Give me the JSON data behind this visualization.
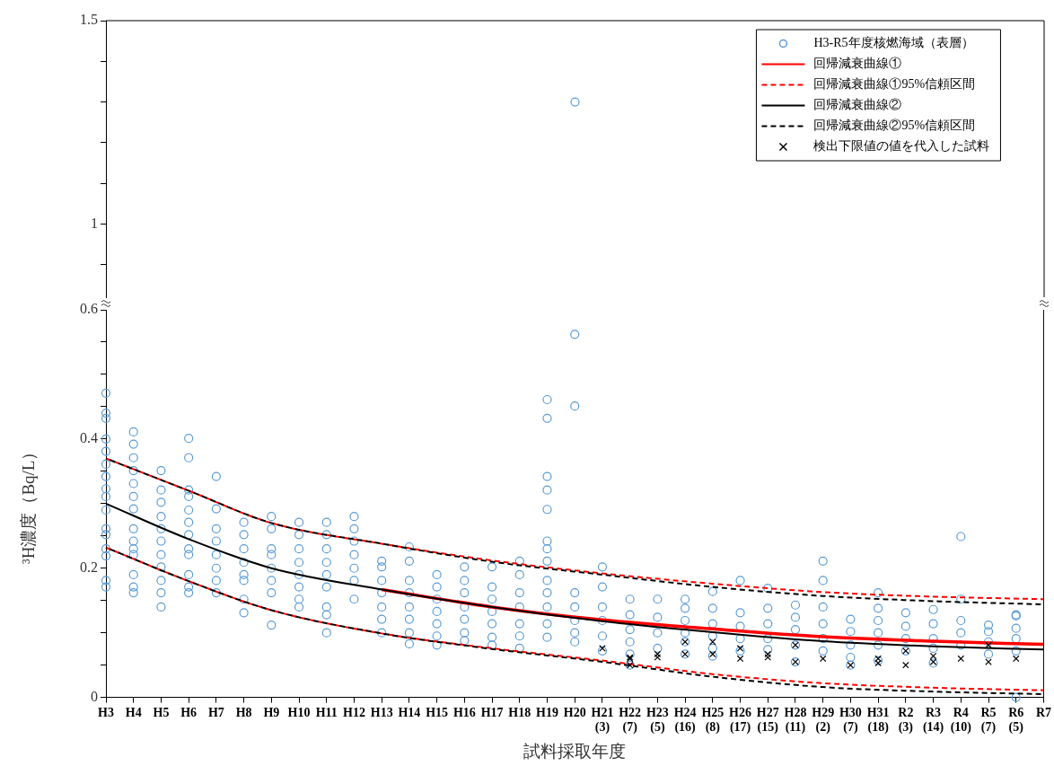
{
  "chart_data": [
    {
      "type": "scatter",
      "tick_labels": "y",
      "categories": [
        "H3",
        "H4",
        "H5",
        "H6",
        "H7",
        "H8",
        "H9",
        "H10",
        "H11",
        "H12",
        "H13",
        "H14",
        "H15",
        "H16",
        "H17",
        "H18",
        "H19",
        "H20",
        "H21\n(3)",
        "H22\n(7)",
        "H23\n(5)",
        "H24\n(16)",
        "H25\n(8)",
        "H26\n(17)",
        "H27\n(15)",
        "H28\n(11)",
        "H29\n(2)",
        "H30\n(7)",
        "H31\n(18)",
        "R2\n(3)",
        "R3\n(14)",
        "R4\n(10)",
        "R5\n(7)",
        "R6\n(5)",
        "R7"
      ],
      "ylim": [
        0.82,
        1.5
      ],
      "yticks": [
        {
          "value": 0.9,
          "label": null
        },
        1,
        {
          "value": 1.1,
          "label": null
        },
        {
          "value": 1.2,
          "label": null
        },
        {
          "value": 1.3,
          "label": null
        },
        {
          "value": 1.4,
          "label": null
        },
        1.5
      ],
      "series": [
        {
          "type": "scatter",
          "marker": "circle",
          "color": "#5b9bd5",
          "x": [
            "H20"
          ],
          "values": [
            1.3
          ]
        }
      ]
    },
    {
      "type": "scatter",
      "xlabel": "試料採取年度",
      "ylabel": "³H濃度（Bq/L）",
      "legend": "top right",
      "categories": [
        "H3",
        "H4",
        "H5",
        "H6",
        "H7",
        "H8",
        "H9",
        "H10",
        "H11",
        "H12",
        "H13",
        "H14",
        "H15",
        "H16",
        "H17",
        "H18",
        "H19",
        "H20",
        "H21\n(3)",
        "H22\n(7)",
        "H23\n(5)",
        "H24\n(16)",
        "H25\n(8)",
        "H26\n(17)",
        "H27\n(15)",
        "H28\n(11)",
        "H29\n(2)",
        "H30\n(7)",
        "H31\n(18)",
        "R2\n(3)",
        "R3\n(14)",
        "R4\n(10)",
        "R5\n(7)",
        "R6\n(5)",
        "R7"
      ],
      "ylim": [
        0,
        0.6
      ],
      "yticks": [
        0,
        {
          "value": 0.05,
          "label": null
        },
        {
          "value": 0.1,
          "label": null
        },
        {
          "value": 0.15,
          "label": null
        },
        0.2,
        {
          "value": 0.25,
          "label": null
        },
        {
          "value": 0.3,
          "label": null
        },
        {
          "value": 0.35,
          "label": null
        },
        0.4,
        {
          "value": 0.45,
          "label": null
        },
        {
          "value": 0.5,
          "label": null
        },
        {
          "value": 0.55,
          "label": null
        },
        0.6
      ],
      "series": [
        {
          "name": "H3-R5年度核燃海域（表層）",
          "type": "scatter",
          "marker": "circle",
          "color": "#5b9bd5",
          "x": [
            "H3",
            "H3",
            "H3",
            "H3",
            "H3",
            "H3",
            "H3",
            "H3",
            "H3",
            "H3",
            "H3",
            "H3",
            "H3",
            "H3",
            "H3",
            "H3",
            "H4",
            "H4",
            "H4",
            "H4",
            "H4",
            "H4",
            "H4",
            "H4",
            "H4",
            "H4",
            "H4",
            "H4",
            "H4",
            "H4",
            "H5",
            "H5",
            "H5",
            "H5",
            "H5",
            "H5",
            "H5",
            "H5",
            "H5",
            "H5",
            "H5",
            "H6",
            "H6",
            "H6",
            "H6",
            "H6",
            "H6",
            "H6",
            "H6",
            "H6",
            "H6",
            "H6",
            "H6",
            "H7",
            "H7",
            "H7",
            "H7",
            "H7",
            "H7",
            "H7",
            "H7",
            "H8",
            "H8",
            "H8",
            "H8",
            "H8",
            "H8",
            "H8",
            "H8",
            "H9",
            "H9",
            "H9",
            "H9",
            "H9",
            "H9",
            "H9",
            "H9",
            "H10",
            "H10",
            "H10",
            "H10",
            "H10",
            "H10",
            "H10",
            "H10",
            "H11",
            "H11",
            "H11",
            "H11",
            "H11",
            "H11",
            "H11",
            "H11",
            "H11",
            "H12",
            "H12",
            "H12",
            "H12",
            "H12",
            "H12",
            "H12",
            "H13",
            "H13",
            "H13",
            "H13",
            "H13",
            "H13",
            "H13",
            "H14",
            "H14",
            "H14",
            "H14",
            "H14",
            "H14",
            "H14",
            "H14",
            "H15",
            "H15",
            "H15",
            "H15",
            "H15",
            "H15",
            "H15",
            "H16",
            "H16",
            "H16",
            "H16",
            "H16",
            "H16",
            "H16",
            "H17",
            "H17",
            "H17",
            "H17",
            "H17",
            "H17",
            "H17",
            "H18",
            "H18",
            "H18",
            "H18",
            "H18",
            "H18",
            "H18",
            "H19",
            "H19",
            "H19",
            "H19",
            "H19",
            "H19",
            "H19",
            "H19",
            "H19",
            "H19",
            "H19",
            "H19",
            "H19",
            "H20",
            "H20",
            "H20",
            "H20",
            "H20",
            "H20",
            "H20",
            "H21\n(3)",
            "H21\n(3)",
            "H21\n(3)",
            "H21\n(3)",
            "H21\n(3)",
            "H21\n(3)",
            "H22\n(7)",
            "H22\n(7)",
            "H22\n(7)",
            "H22\n(7)",
            "H22\n(7)",
            "H22\n(7)",
            "H23\n(5)",
            "H23\n(5)",
            "H23\n(5)",
            "H23\n(5)",
            "H24\n(16)",
            "H24\n(16)",
            "H24\n(16)",
            "H24\n(16)",
            "H24\n(16)",
            "H24\n(16)",
            "H25\n(8)",
            "H25\n(8)",
            "H25\n(8)",
            "H25\n(8)",
            "H25\n(8)",
            "H25\n(8)",
            "H26\n(17)",
            "H26\n(17)",
            "H26\n(17)",
            "H26\n(17)",
            "H26\n(17)",
            "H27\n(15)",
            "H27\n(15)",
            "H27\n(15)",
            "H27\n(15)",
            "H27\n(15)",
            "H28\n(11)",
            "H28\n(11)",
            "H28\n(11)",
            "H28\n(11)",
            "H28\n(11)",
            "H29\n(2)",
            "H29\n(2)",
            "H29\n(2)",
            "H29\n(2)",
            "H29\n(2)",
            "H29\n(2)",
            "H30\n(7)",
            "H30\n(7)",
            "H30\n(7)",
            "H30\n(7)",
            "H30\n(7)",
            "H31\n(18)",
            "H31\n(18)",
            "H31\n(18)",
            "H31\n(18)",
            "H31\n(18)",
            "H31\n(18)",
            "R2\n(3)",
            "R2\n(3)",
            "R2\n(3)",
            "R2\n(3)",
            "R3\n(14)",
            "R3\n(14)",
            "R3\n(14)",
            "R3\n(14)",
            "R3\n(14)",
            "R4\n(10)",
            "R4\n(10)",
            "R4\n(10)",
            "R4\n(10)",
            "R4\n(10)",
            "R5\n(7)",
            "R5\n(7)",
            "R5\n(7)",
            "R5\n(7)",
            "R6\n(5)",
            "R6\n(5)",
            "R6\n(5)",
            "R6\n(5)",
            "R6\n(5)",
            "R6\n(5)"
          ],
          "values": [
            0.471,
            0.44,
            0.432,
            0.4,
            0.381,
            0.361,
            0.342,
            0.323,
            0.311,
            0.29,
            0.261,
            0.252,
            0.23,
            0.219,
            0.181,
            0.171,
            0.411,
            0.392,
            0.371,
            0.351,
            0.331,
            0.311,
            0.292,
            0.261,
            0.242,
            0.23,
            0.221,
            0.19,
            0.171,
            0.162,
            0.351,
            0.321,
            0.302,
            0.28,
            0.261,
            0.242,
            0.221,
            0.202,
            0.181,
            0.162,
            0.14,
            0.401,
            0.371,
            0.321,
            0.311,
            0.29,
            0.271,
            0.252,
            0.23,
            0.221,
            0.19,
            0.171,
            0.162,
            0.342,
            0.292,
            0.261,
            0.242,
            0.221,
            0.2,
            0.181,
            0.162,
            0.271,
            0.252,
            0.23,
            0.209,
            0.19,
            0.181,
            0.152,
            0.131,
            0.28,
            0.261,
            0.23,
            0.221,
            0.2,
            0.181,
            0.162,
            0.112,
            0.271,
            0.252,
            0.23,
            0.209,
            0.19,
            0.171,
            0.152,
            0.14,
            0.271,
            0.252,
            0.23,
            0.209,
            0.19,
            0.171,
            0.14,
            0.128,
            0.1,
            0.28,
            0.261,
            0.242,
            0.221,
            0.2,
            0.181,
            0.152,
            0.211,
            0.202,
            0.181,
            0.162,
            0.14,
            0.121,
            0.1,
            0.233,
            0.211,
            0.181,
            0.162,
            0.14,
            0.121,
            0.1,
            0.083,
            0.19,
            0.171,
            0.152,
            0.133,
            0.114,
            0.095,
            0.081,
            0.202,
            0.181,
            0.162,
            0.14,
            0.121,
            0.1,
            0.088,
            0.202,
            0.171,
            0.152,
            0.133,
            0.114,
            0.093,
            0.081,
            0.211,
            0.19,
            0.162,
            0.14,
            0.114,
            0.095,
            0.076,
            0.461,
            0.432,
            0.342,
            0.321,
            0.291,
            0.242,
            0.23,
            0.211,
            0.181,
            0.162,
            0.14,
            0.114,
            0.093,
            0.562,
            0.451,
            0.162,
            0.14,
            0.119,
            0.1,
            0.086,
            0.202,
            0.171,
            0.14,
            0.119,
            0.095,
            0.072,
            0.152,
            0.128,
            0.105,
            0.086,
            0.067,
            0.05,
            0.152,
            0.124,
            0.1,
            0.076,
            0.152,
            0.138,
            0.119,
            0.1,
            0.086,
            0.067,
            0.164,
            0.138,
            0.114,
            0.095,
            0.076,
            0.064,
            0.181,
            0.131,
            0.11,
            0.091,
            0.072,
            0.169,
            0.138,
            0.114,
            0.091,
            0.074,
            0.143,
            0.124,
            0.105,
            0.081,
            0.055,
            0.211,
            0.181,
            0.14,
            0.114,
            0.091,
            0.072,
            0.121,
            0.102,
            0.081,
            0.062,
            0.05,
            0.162,
            0.138,
            0.119,
            0.1,
            0.081,
            0.057,
            0.131,
            0.11,
            0.091,
            0.072,
            0.136,
            0.114,
            0.091,
            0.076,
            0.053,
            0.249,
            0.152,
            0.119,
            0.1,
            0.081,
            0.112,
            0.102,
            0.086,
            0.067,
            0.128,
            0.126,
            0.107,
            0.091,
            0.072,
            0
          ]
        },
        {
          "name": "回帰減衰曲線①",
          "type": "line",
          "marker": "none",
          "line_style": "solid",
          "color": "#ff0000",
          "x": [
            "H3",
            "H6",
            "H9",
            "H13",
            "H17",
            "H21\n(3)",
            "H25\n(8)",
            "H29\n(2)",
            "R3\n(14)",
            "R7"
          ],
          "values": [
            null,
            null,
            null,
            0.167,
            0.14,
            0.12,
            0.106,
            0.094,
            0.087,
            0.082
          ]
        },
        {
          "name": "回帰減衰曲線①95%信頼区間",
          "type": "line",
          "marker": "none",
          "line_style": "dashed",
          "color": "#ff0000",
          "x": [
            "H3",
            "H6",
            "H9",
            "H13",
            "H17",
            "H21\n(3)",
            "H25\n(8)",
            "H29\n(2)",
            "R3\n(14)",
            "R7"
          ],
          "values": [
            0.37,
            0.32,
            0.27,
            0.238,
            0.212,
            0.192,
            0.176,
            0.163,
            0.156,
            0.152
          ]
        },
        {
          "type": "line",
          "marker": "none",
          "line_style": "dashed",
          "color": "#ff0000",
          "x": [
            "H3",
            "H6",
            "H9",
            "H13",
            "H17",
            "H21\n(3)",
            "H25\n(8)",
            "H29\n(2)",
            "R3\n(14)",
            "R7"
          ],
          "values": [
            0.232,
            0.18,
            0.135,
            0.099,
            0.076,
            0.057,
            0.036,
            0.022,
            0.015,
            0.011
          ]
        },
        {
          "name": "回帰減衰曲線②",
          "type": "line",
          "marker": "none",
          "line_style": "solid",
          "color": "#000000",
          "x": [
            "H3",
            "H6",
            "H9",
            "H13",
            "H17",
            "H21\n(3)",
            "H25\n(8)",
            "H29\n(2)",
            "R3\n(14)",
            "R7"
          ],
          "values": [
            0.3,
            0.245,
            0.2,
            0.167,
            0.14,
            0.118,
            0.101,
            0.087,
            0.079,
            0.074
          ]
        },
        {
          "name": "回帰減衰曲線②95%信頼区間",
          "type": "line",
          "marker": "none",
          "line_style": "dashed",
          "color": "#000000",
          "x": [
            "H3",
            "H6",
            "H9",
            "H13",
            "H17",
            "H21\n(3)",
            "H25\n(8)",
            "H29\n(2)",
            "R3\n(14)",
            "R7"
          ],
          "values": [
            0.37,
            0.32,
            0.27,
            0.238,
            0.21,
            0.19,
            0.171,
            0.157,
            0.149,
            0.144
          ]
        },
        {
          "type": "line",
          "marker": "none",
          "line_style": "dashed",
          "color": "#000000",
          "x": [
            "H3",
            "H6",
            "H9",
            "H13",
            "H17",
            "H21\n(3)",
            "H25\n(8)",
            "H29\n(2)",
            "R3\n(14)",
            "R7"
          ],
          "values": [
            0.232,
            0.18,
            0.135,
            0.099,
            0.075,
            0.055,
            0.032,
            0.016,
            0.009,
            0.005
          ]
        },
        {
          "name": "検出下限値の値を代入した試料",
          "type": "scatter",
          "marker": "cross",
          "color": "#000000",
          "x": [
            "H21\n(3)",
            "H22\n(7)",
            "H22\n(7)",
            "H22\n(7)",
            "H23\n(5)",
            "H23\n(5)",
            "H24\n(16)",
            "H24\n(16)",
            "H25\n(8)",
            "H25\n(8)",
            "H26\n(17)",
            "H26\n(17)",
            "H27\n(15)",
            "H27\n(15)",
            "H28\n(11)",
            "H28\n(11)",
            "H29\n(2)",
            "H30\n(7)",
            "H31\n(18)",
            "H31\n(18)",
            "R2\n(3)",
            "R2\n(3)",
            "R3\n(14)",
            "R3\n(14)",
            "R4\n(10)",
            "R5\n(7)",
            "R5\n(7)",
            "R6\n(5)"
          ],
          "values": [
            0.076,
            0.062,
            0.06,
            0.05,
            0.062,
            0.067,
            0.086,
            0.067,
            0.086,
            0.067,
            0.076,
            0.06,
            0.067,
            0.062,
            0.081,
            0.055,
            0.06,
            0.05,
            0.06,
            0.053,
            0.072,
            0.05,
            0.064,
            0.055,
            0.06,
            0.055,
            0.081,
            0.06
          ]
        }
      ]
    }
  ]
}
